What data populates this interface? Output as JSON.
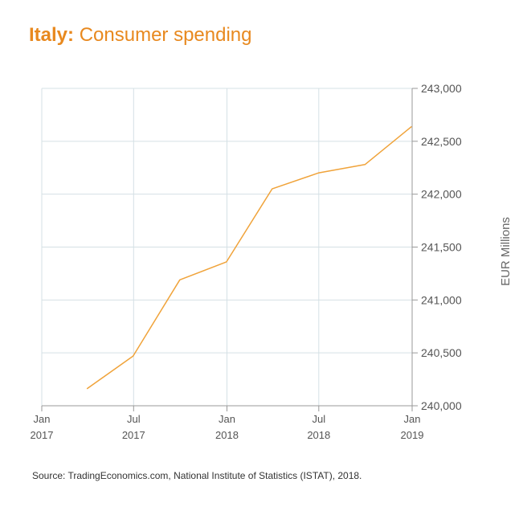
{
  "title": {
    "country": "Italy",
    "separator": ":",
    "text": "Consumer spending"
  },
  "source": "Source: TradingEconomics.com, National Institute of Statistics (ISTAT), 2018.",
  "chart_data": {
    "type": "line",
    "title": "Italy: Consumer spending",
    "ylabel": "EUR Millions",
    "xlabel": "",
    "ylim": [
      240000,
      243000
    ],
    "xlim": [
      "2017-01-01",
      "2019-01-01"
    ],
    "grid": true,
    "yticks": [
      {
        "value": 240000,
        "label": "240,000"
      },
      {
        "value": 240500,
        "label": "240,500"
      },
      {
        "value": 241000,
        "label": "241,000"
      },
      {
        "value": 241500,
        "label": "241,500"
      },
      {
        "value": 242000,
        "label": "242,000"
      },
      {
        "value": 242500,
        "label": "242,500"
      },
      {
        "value": 243000,
        "label": "243,000"
      }
    ],
    "xticks": [
      {
        "date": "2017-01-01",
        "month": "Jan",
        "year": "2017"
      },
      {
        "date": "2017-07-01",
        "month": "Jul",
        "year": "2017"
      },
      {
        "date": "2018-01-01",
        "month": "Jan",
        "year": "2018"
      },
      {
        "date": "2018-07-01",
        "month": "Jul",
        "year": "2018"
      },
      {
        "date": "2019-01-01",
        "month": "Jan",
        "year": "2019"
      }
    ],
    "series": [
      {
        "color": "#f0a33a",
        "points": [
          {
            "x": "2017-03-31",
            "y": 240160
          },
          {
            "x": "2017-06-30",
            "y": 240470
          },
          {
            "x": "2017-09-30",
            "y": 241190
          },
          {
            "x": "2017-12-31",
            "y": 241360
          },
          {
            "x": "2018-03-31",
            "y": 242050
          },
          {
            "x": "2018-06-30",
            "y": 242200
          },
          {
            "x": "2018-09-30",
            "y": 242280
          },
          {
            "x": "2018-12-31",
            "y": 242640
          }
        ]
      }
    ]
  },
  "colors": {
    "accent": "#e8891f",
    "grid": "#d5e0e5",
    "axis": "#999999"
  }
}
